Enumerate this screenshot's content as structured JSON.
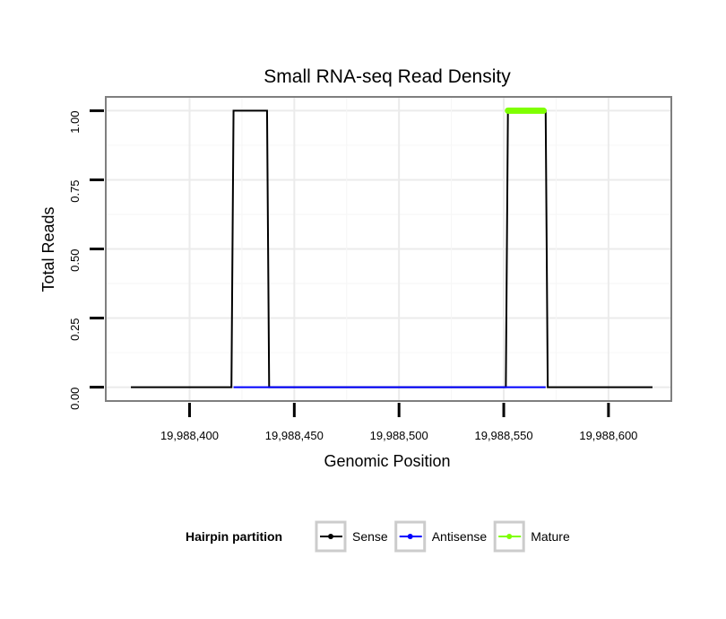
{
  "chart_data": {
    "type": "line",
    "title": "Small RNA-seq Read Density",
    "xlabel": "Genomic Position",
    "ylabel": "Total Reads",
    "xlim": [
      19988360,
      19988630
    ],
    "ylim": [
      -0.05,
      1.05
    ],
    "x_ticks": [
      19988400,
      19988450,
      19988500,
      19988550,
      19988600
    ],
    "x_tick_labels": [
      "19,988,400",
      "19,988,450",
      "19,988,500",
      "19,988,550",
      "19,988,600"
    ],
    "y_ticks": [
      0,
      0.25,
      0.5,
      0.75,
      1.0
    ],
    "y_tick_labels": [
      "0.00",
      "0.25",
      "0.50",
      "0.75",
      "1.00"
    ],
    "grid": true,
    "series": [
      {
        "name": "Sense",
        "color": "#000000",
        "x": [
          19988372,
          19988420,
          19988421,
          19988437,
          19988438,
          19988551,
          19988552,
          19988570,
          19988571,
          19988621
        ],
        "y": [
          0,
          0,
          1,
          1,
          0,
          0,
          1,
          1,
          0,
          0
        ]
      },
      {
        "name": "Antisense",
        "color": "#0000ff",
        "x": [
          19988421,
          19988437,
          19988552,
          19988570
        ],
        "y": [
          0,
          0,
          0,
          0
        ]
      },
      {
        "name": "Mature",
        "color": "#7fff00",
        "x": [
          19988552,
          19988569
        ],
        "y": [
          1,
          1
        ]
      }
    ],
    "legend": {
      "title": "Hairpin partition",
      "position": "bottom",
      "entries": [
        "Sense",
        "Antisense",
        "Mature"
      ]
    }
  }
}
